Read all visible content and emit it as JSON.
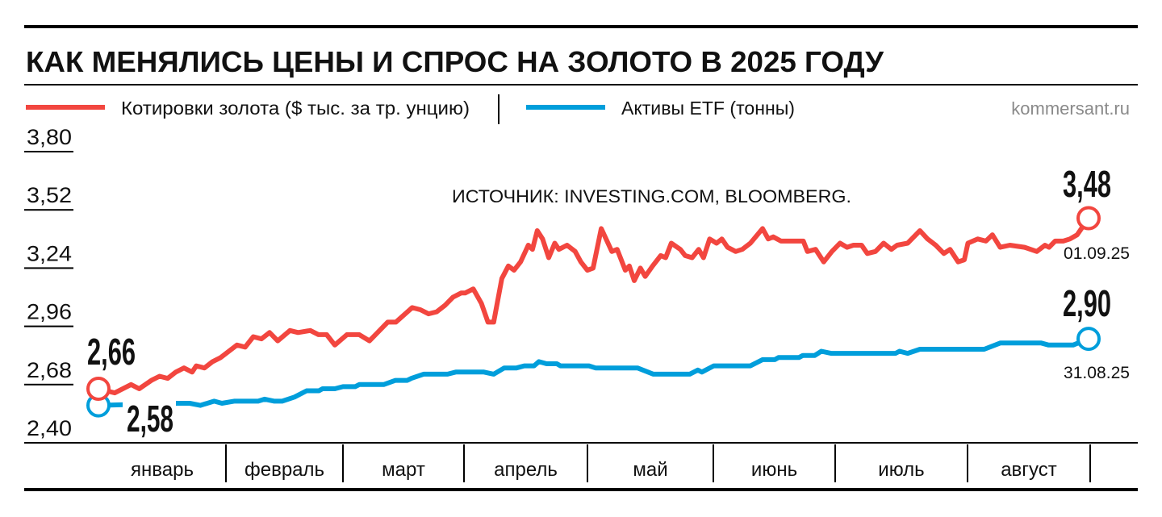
{
  "header": {
    "title": "КАК МЕНЯЛИСЬ ЦЕНЫ И СПРОС НА ЗОЛОТО В 2025 ГОДУ",
    "site": "kommersant.ru"
  },
  "colors": {
    "gold": "#f2463f",
    "etf": "#009edb",
    "text": "#111111"
  },
  "chart_data": {
    "type": "line",
    "title": "КАК МЕНЯЛИСЬ ЦЕНЫ И СПРОС НА ЗОЛОТО В 2025 ГОДУ",
    "source": "ИСТОЧНИК: INVESTING.COM, BLOOMBERG.",
    "xlabel": "",
    "ylabel": "",
    "x_unit": "days since 01.01.25",
    "xlim": [
      0,
      243
    ],
    "ylim": [
      2.4,
      3.8
    ],
    "y_ticks": [
      "3,80",
      "3,52",
      "3,24",
      "2,96",
      "2,68",
      "2,40"
    ],
    "y_tick_values": [
      3.8,
      3.52,
      3.24,
      2.96,
      2.68,
      2.4
    ],
    "months": [
      "январь",
      "февраль",
      "март",
      "апрель",
      "май",
      "июнь",
      "июль",
      "август"
    ],
    "legend_placement": "top-left",
    "series": [
      {
        "name": "Котировки золота ($ тыс. за тр. унцию)",
        "color": "#f2463f",
        "points": [
          [
            0,
            2.66
          ],
          [
            4,
            2.64
          ],
          [
            8,
            2.68
          ],
          [
            10,
            2.66
          ],
          [
            13,
            2.7
          ],
          [
            15,
            2.72
          ],
          [
            17,
            2.71
          ],
          [
            19,
            2.74
          ],
          [
            21,
            2.76
          ],
          [
            23,
            2.74
          ],
          [
            24,
            2.77
          ],
          [
            26,
            2.76
          ],
          [
            28,
            2.79
          ],
          [
            30,
            2.81
          ],
          [
            34,
            2.87
          ],
          [
            36,
            2.86
          ],
          [
            38,
            2.91
          ],
          [
            40,
            2.9
          ],
          [
            42,
            2.93
          ],
          [
            44,
            2.89
          ],
          [
            47,
            2.94
          ],
          [
            49,
            2.93
          ],
          [
            52,
            2.94
          ],
          [
            54,
            2.92
          ],
          [
            56,
            2.92
          ],
          [
            58,
            2.87
          ],
          [
            61,
            2.92
          ],
          [
            64,
            2.92
          ],
          [
            66.5,
            2.89
          ],
          [
            68.5,
            2.93
          ],
          [
            71,
            2.98
          ],
          [
            73,
            2.98
          ],
          [
            77,
            3.05
          ],
          [
            79,
            3.04
          ],
          [
            81,
            3.02
          ],
          [
            83,
            3.03
          ],
          [
            85,
            3.06
          ],
          [
            87,
            3.1
          ],
          [
            89,
            3.12
          ],
          [
            90,
            3.12
          ],
          [
            92,
            3.14
          ],
          [
            94,
            3.07
          ],
          [
            95.6,
            2.98
          ],
          [
            97,
            2.98
          ],
          [
            99,
            3.19
          ],
          [
            100.6,
            3.25
          ],
          [
            102,
            3.23
          ],
          [
            103.6,
            3.27
          ],
          [
            105.5,
            3.35
          ],
          [
            106.5,
            3.33
          ],
          [
            107.7,
            3.42
          ],
          [
            109,
            3.38
          ],
          [
            110.5,
            3.29
          ],
          [
            112,
            3.36
          ],
          [
            113,
            3.33
          ],
          [
            115,
            3.35
          ],
          [
            117,
            3.32
          ],
          [
            118.4,
            3.27
          ],
          [
            120,
            3.23
          ],
          [
            121.4,
            3.24
          ],
          [
            123.4,
            3.43
          ],
          [
            126,
            3.32
          ],
          [
            127.3,
            3.33
          ],
          [
            129.3,
            3.23
          ],
          [
            130.3,
            3.25
          ],
          [
            131.5,
            3.18
          ],
          [
            133,
            3.24
          ],
          [
            134.2,
            3.2
          ],
          [
            136,
            3.25
          ],
          [
            138,
            3.3
          ],
          [
            139.2,
            3.29
          ],
          [
            140.6,
            3.36
          ],
          [
            142.8,
            3.33
          ],
          [
            144,
            3.3
          ],
          [
            145.7,
            3.29
          ],
          [
            147.3,
            3.33
          ],
          [
            148.5,
            3.29
          ],
          [
            150,
            3.38
          ],
          [
            151.7,
            3.36
          ],
          [
            153,
            3.38
          ],
          [
            154.4,
            3.34
          ],
          [
            156.4,
            3.32
          ],
          [
            158,
            3.33
          ],
          [
            160,
            3.36
          ],
          [
            163,
            3.43
          ],
          [
            164.4,
            3.38
          ],
          [
            165.6,
            3.39
          ],
          [
            167.5,
            3.37
          ],
          [
            173,
            3.37
          ],
          [
            174,
            3.32
          ],
          [
            176,
            3.33
          ],
          [
            178,
            3.27
          ],
          [
            180,
            3.32
          ],
          [
            182,
            3.36
          ],
          [
            183.7,
            3.34
          ],
          [
            185.3,
            3.35
          ],
          [
            187.3,
            3.35
          ],
          [
            188.7,
            3.31
          ],
          [
            190.7,
            3.32
          ],
          [
            192.7,
            3.36
          ],
          [
            194.6,
            3.33
          ],
          [
            196,
            3.35
          ],
          [
            198.6,
            3.36
          ],
          [
            201.6,
            3.42
          ],
          [
            203.5,
            3.38
          ],
          [
            205.5,
            3.35
          ],
          [
            207.5,
            3.31
          ],
          [
            209,
            3.33
          ],
          [
            211,
            3.27
          ],
          [
            212.5,
            3.28
          ],
          [
            213.4,
            3.36
          ],
          [
            215.8,
            3.38
          ],
          [
            217.8,
            3.37
          ],
          [
            219.4,
            3.4
          ],
          [
            221.3,
            3.34
          ],
          [
            223.7,
            3.35
          ],
          [
            227.3,
            3.34
          ],
          [
            230.3,
            3.32
          ],
          [
            232.3,
            3.35
          ],
          [
            233.3,
            3.34
          ],
          [
            234.8,
            3.37
          ],
          [
            236.8,
            3.37
          ],
          [
            238.4,
            3.38
          ],
          [
            240.2,
            3.4
          ],
          [
            243,
            3.48
          ]
        ],
        "start_label": "2,66",
        "end_label": "3,48",
        "end_date": "01.09.25"
      },
      {
        "name": "Активы ETF (тонны)",
        "color": "#009edb",
        "points": [
          [
            0,
            2.58
          ],
          [
            18.4,
            2.59
          ],
          [
            22.4,
            2.59
          ],
          [
            25,
            2.58
          ],
          [
            28.4,
            2.6
          ],
          [
            30.3,
            2.59
          ],
          [
            33.3,
            2.6
          ],
          [
            39.2,
            2.6
          ],
          [
            40.8,
            2.61
          ],
          [
            43.2,
            2.6
          ],
          [
            45.1,
            2.6
          ],
          [
            48.1,
            2.62
          ],
          [
            51.1,
            2.65
          ],
          [
            54.1,
            2.65
          ],
          [
            55,
            2.66
          ],
          [
            58,
            2.66
          ],
          [
            60,
            2.67
          ],
          [
            63,
            2.67
          ],
          [
            64,
            2.68
          ],
          [
            70,
            2.68
          ],
          [
            72.9,
            2.7
          ],
          [
            75.8,
            2.7
          ],
          [
            76.8,
            2.71
          ],
          [
            79.8,
            2.73
          ],
          [
            85.7,
            2.73
          ],
          [
            87.7,
            2.74
          ],
          [
            94.6,
            2.74
          ],
          [
            97,
            2.73
          ],
          [
            99.6,
            2.76
          ],
          [
            102.6,
            2.76
          ],
          [
            104.5,
            2.77
          ],
          [
            106.9,
            2.77
          ],
          [
            108.1,
            2.79
          ],
          [
            110,
            2.78
          ],
          [
            112.5,
            2.78
          ],
          [
            113.4,
            2.77
          ],
          [
            120.4,
            2.77
          ],
          [
            122,
            2.76
          ],
          [
            132.3,
            2.76
          ],
          [
            136.2,
            2.73
          ],
          [
            145.1,
            2.73
          ],
          [
            147.1,
            2.75
          ],
          [
            148.1,
            2.74
          ],
          [
            151,
            2.77
          ],
          [
            160,
            2.77
          ],
          [
            163,
            2.8
          ],
          [
            166,
            2.8
          ],
          [
            166.9,
            2.81
          ],
          [
            171.9,
            2.81
          ],
          [
            172.9,
            2.82
          ],
          [
            175.8,
            2.82
          ],
          [
            177.4,
            2.84
          ],
          [
            179.8,
            2.83
          ],
          [
            195.6,
            2.83
          ],
          [
            196.6,
            2.84
          ],
          [
            198.6,
            2.83
          ],
          [
            201.6,
            2.85
          ],
          [
            217.4,
            2.85
          ],
          [
            221.4,
            2.88
          ],
          [
            231.3,
            2.88
          ],
          [
            233.2,
            2.87
          ],
          [
            239.2,
            2.87
          ],
          [
            243,
            2.9
          ]
        ],
        "start_label": "2,58",
        "end_label": "2,90",
        "end_date": "31.08.25"
      }
    ]
  }
}
